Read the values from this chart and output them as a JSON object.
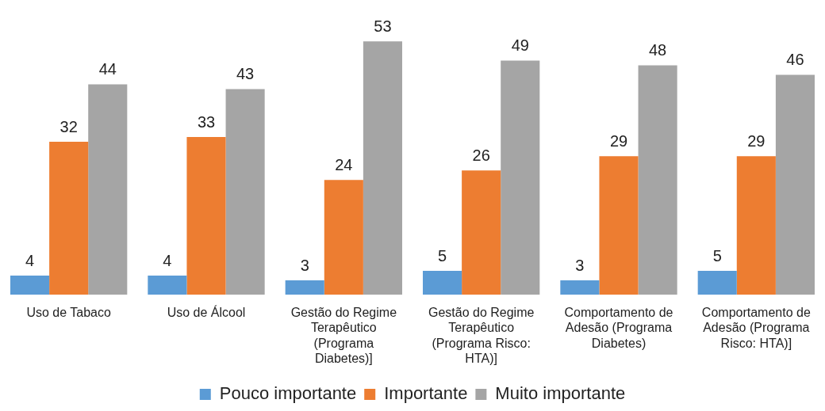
{
  "chart_data": {
    "type": "bar",
    "categories": [
      "Uso de Tabaco",
      "Uso de Álcool",
      "Gestão do Regime Terapêutico (Programa Diabetes)]",
      "Gestão do Regime Terapêutico (Programa Risco: HTA)]",
      "Comportamento de Adesão (Programa Diabetes)",
      "Comportamento de Adesão (Programa Risco: HTA)]"
    ],
    "series": [
      {
        "name": "Pouco importante",
        "color": "#5b9bd5",
        "values": [
          4,
          4,
          3,
          5,
          3,
          5
        ]
      },
      {
        "name": "Importante",
        "color": "#ed7d31",
        "values": [
          32,
          33,
          24,
          26,
          29,
          29
        ]
      },
      {
        "name": "Muito importante",
        "color": "#a5a5a5",
        "values": [
          44,
          43,
          53,
          49,
          48,
          46
        ]
      }
    ],
    "tick_labels": "x",
    "grid": false,
    "legend": "bottom",
    "data_labels": true
  }
}
